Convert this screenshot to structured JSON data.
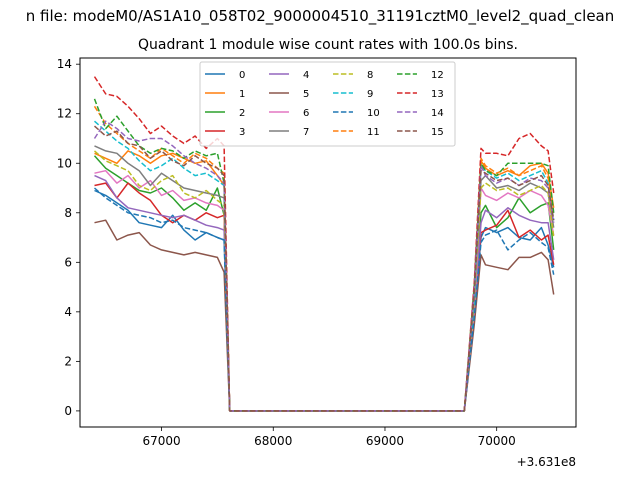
{
  "chart_data": {
    "type": "line",
    "suptitle": "n file: modeM0/AS1A10_058T02_9000004510_31191cztM0_level2_quad_clean",
    "title": "Quadrant 1 module wise count rates with 100.0s bins.",
    "xlabel": "",
    "ylabel": "",
    "x_offset_label": "+3.631e8",
    "xlim": [
      66270,
      70710
    ],
    "ylim": [
      -0.65,
      14.25
    ],
    "xticks": [
      67000,
      68000,
      69000,
      70000
    ],
    "xtick_labels": [
      "67000",
      "68000",
      "69000",
      "70000"
    ],
    "yticks": [
      0,
      2,
      4,
      6,
      8,
      10,
      12,
      14
    ],
    "ytick_labels": [
      "0",
      "2",
      "4",
      "6",
      "8",
      "10",
      "12",
      "14"
    ],
    "legend_loc": "upper center",
    "x": [
      66400,
      66500,
      66600,
      66700,
      66800,
      66900,
      67000,
      67100,
      67200,
      67300,
      67400,
      67500,
      67560,
      67610,
      69710,
      69800,
      69860,
      69900,
      70000,
      70100,
      70200,
      70300,
      70400,
      70460,
      70510
    ],
    "series": [
      {
        "name": "0",
        "color": "#1f77b4",
        "dash": "solid",
        "values": [
          8.9,
          8.7,
          8.4,
          8.1,
          7.6,
          7.5,
          7.4,
          7.9,
          7.3,
          6.9,
          7.2,
          7.0,
          6.9,
          0,
          0,
          3.8,
          7.0,
          7.4,
          7.2,
          7.4,
          7.0,
          6.9,
          7.4,
          6.7,
          5.8
        ]
      },
      {
        "name": "1",
        "color": "#ff7f0e",
        "dash": "solid",
        "values": [
          10.4,
          10.2,
          10.0,
          10.5,
          10.3,
          10.0,
          10.3,
          10.4,
          10.2,
          10.0,
          10.1,
          9.5,
          9.1,
          0,
          0,
          4.7,
          10.1,
          9.8,
          9.5,
          9.7,
          9.5,
          9.9,
          10.0,
          9.6,
          8.2
        ]
      },
      {
        "name": "2",
        "color": "#2ca02c",
        "dash": "solid",
        "values": [
          10.3,
          9.8,
          9.5,
          9.2,
          8.9,
          8.8,
          9.0,
          8.6,
          8.1,
          8.4,
          8.1,
          9.0,
          7.9,
          0,
          0,
          4.2,
          8.0,
          8.3,
          7.4,
          7.8,
          8.6,
          8.0,
          8.3,
          8.4,
          6.5
        ]
      },
      {
        "name": "3",
        "color": "#d62728",
        "dash": "solid",
        "values": [
          9.1,
          9.2,
          8.6,
          9.2,
          8.8,
          8.5,
          7.9,
          7.6,
          7.9,
          7.7,
          8.0,
          7.8,
          7.9,
          0,
          0,
          3.9,
          7.2,
          7.3,
          7.5,
          8.1,
          7.0,
          7.3,
          6.9,
          7.1,
          5.9
        ]
      },
      {
        "name": "4",
        "color": "#9467bd",
        "dash": "solid",
        "values": [
          9.5,
          9.3,
          8.6,
          8.2,
          8.1,
          8.0,
          7.9,
          7.8,
          7.9,
          7.7,
          7.5,
          7.4,
          7.3,
          0,
          0,
          3.8,
          7.6,
          8.1,
          7.8,
          8.2,
          7.9,
          7.7,
          7.6,
          7.6,
          6.1
        ]
      },
      {
        "name": "5",
        "color": "#8c564b",
        "dash": "solid",
        "values": [
          7.6,
          7.7,
          6.9,
          7.1,
          7.2,
          6.7,
          6.5,
          6.4,
          6.3,
          6.4,
          6.3,
          6.2,
          5.6,
          0,
          0,
          3.5,
          6.3,
          5.9,
          5.8,
          5.7,
          6.2,
          6.2,
          6.4,
          6.1,
          4.7
        ]
      },
      {
        "name": "6",
        "color": "#e377c2",
        "dash": "solid",
        "values": [
          9.6,
          9.7,
          9.2,
          9.5,
          9.0,
          9.3,
          8.7,
          8.9,
          8.5,
          8.6,
          8.4,
          8.3,
          8.1,
          0,
          0,
          4.1,
          9.0,
          8.7,
          8.5,
          8.8,
          8.6,
          8.9,
          8.7,
          8.3,
          7.1
        ]
      },
      {
        "name": "7",
        "color": "#7f7f7f",
        "dash": "solid",
        "values": [
          10.7,
          10.5,
          10.4,
          10.0,
          9.7,
          9.1,
          9.6,
          9.3,
          9.0,
          8.9,
          8.8,
          8.7,
          8.6,
          0,
          0,
          4.5,
          9.3,
          9.5,
          9.0,
          9.1,
          8.9,
          9.2,
          9.0,
          8.8,
          7.4
        ]
      },
      {
        "name": "8",
        "color": "#bcbd22",
        "dash": "dashed",
        "values": [
          10.5,
          10.1,
          9.9,
          9.7,
          9.1,
          8.9,
          9.3,
          9.5,
          8.8,
          8.6,
          8.9,
          8.5,
          8.3,
          0,
          0,
          4.4,
          9.0,
          9.2,
          8.9,
          9.0,
          8.7,
          8.9,
          9.1,
          8.8,
          7.0
        ]
      },
      {
        "name": "9",
        "color": "#17becf",
        "dash": "dashed",
        "values": [
          11.7,
          11.3,
          10.9,
          10.6,
          10.1,
          9.7,
          9.9,
          10.2,
          9.8,
          9.5,
          9.6,
          9.3,
          9.1,
          0,
          0,
          4.6,
          9.9,
          9.7,
          9.4,
          9.6,
          9.3,
          9.5,
          9.7,
          9.2,
          7.7
        ]
      },
      {
        "name": "10",
        "color": "#1f77b4",
        "dash": "dashed",
        "values": [
          9.0,
          8.6,
          8.3,
          8.0,
          7.9,
          7.8,
          7.6,
          7.7,
          7.4,
          7.3,
          7.2,
          7.0,
          6.9,
          0,
          0,
          3.8,
          6.8,
          7.1,
          7.3,
          6.5,
          6.9,
          7.2,
          6.8,
          6.6,
          5.5
        ]
      },
      {
        "name": "11",
        "color": "#ff7f0e",
        "dash": "dashed",
        "values": [
          12.3,
          11.6,
          11.2,
          10.8,
          10.5,
          10.2,
          10.6,
          10.3,
          10.0,
          10.4,
          10.2,
          9.8,
          9.6,
          0,
          0,
          5.0,
          10.2,
          9.9,
          9.6,
          9.8,
          9.5,
          9.7,
          9.9,
          9.4,
          7.9
        ]
      },
      {
        "name": "12",
        "color": "#2ca02c",
        "dash": "dashed",
        "values": [
          12.6,
          11.4,
          11.9,
          11.3,
          10.7,
          10.4,
          10.6,
          10.5,
          10.2,
          10.5,
          10.3,
          10.4,
          9.2,
          0,
          0,
          5.1,
          10.0,
          9.7,
          9.5,
          10.0,
          10.0,
          10.0,
          10.0,
          9.9,
          8.0
        ]
      },
      {
        "name": "13",
        "color": "#d62728",
        "dash": "dashed",
        "values": [
          13.5,
          12.8,
          12.7,
          12.3,
          11.8,
          11.2,
          11.5,
          11.1,
          10.8,
          11.1,
          10.6,
          11.0,
          10.7,
          0,
          0,
          5.2,
          10.6,
          10.4,
          10.4,
          10.3,
          11.0,
          11.2,
          10.7,
          10.5,
          8.8
        ]
      },
      {
        "name": "14",
        "color": "#9467bd",
        "dash": "dashed",
        "values": [
          11.0,
          11.7,
          11.4,
          11.0,
          10.9,
          11.0,
          11.0,
          10.7,
          10.3,
          10.0,
          9.8,
          9.5,
          9.2,
          0,
          0,
          4.9,
          9.9,
          9.5,
          9.2,
          9.4,
          9.1,
          9.4,
          9.3,
          9.0,
          7.6
        ]
      },
      {
        "name": "15",
        "color": "#8c564b",
        "dash": "dashed",
        "values": [
          11.5,
          11.1,
          11.3,
          10.8,
          10.7,
          10.2,
          10.5,
          10.1,
          9.9,
          10.3,
          10.0,
          9.8,
          9.5,
          0,
          0,
          4.8,
          9.7,
          9.6,
          9.3,
          9.4,
          9.1,
          9.3,
          9.5,
          9.1,
          7.7
        ]
      }
    ]
  }
}
